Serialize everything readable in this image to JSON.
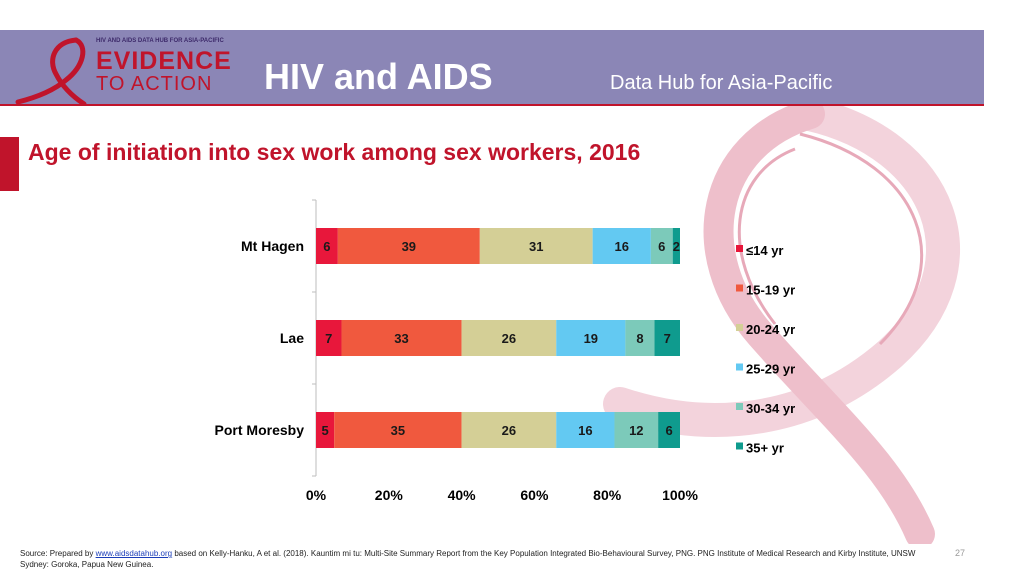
{
  "header": {
    "logo_small": "HIV AND AIDS DATA HUB FOR ASIA-PACIFIC",
    "logo_line1": "EVIDENCE",
    "logo_line2": "TO ACTION",
    "title": "HIV and AIDS",
    "subtitle": "Data Hub for Asia-Pacific"
  },
  "colors": {
    "header_bg": "#8b86b6",
    "accent_red": "#c0142b",
    "series": [
      "#e8173b",
      "#f0593e",
      "#d4cf96",
      "#63c9f2",
      "#7ccaba",
      "#0f9b8e"
    ]
  },
  "chart_data": {
    "type": "bar",
    "orientation": "horizontal",
    "stacked": true,
    "title": "Age of initiation into sex work among sex workers, 2016",
    "categories": [
      "Mt Hagen",
      "Lae",
      "Port Moresby"
    ],
    "series": [
      {
        "name": "≤14 yr",
        "values": [
          6,
          7,
          5
        ]
      },
      {
        "name": "15-19 yr",
        "values": [
          39,
          33,
          35
        ]
      },
      {
        "name": "20-24 yr",
        "values": [
          31,
          26,
          26
        ]
      },
      {
        "name": "25-29 yr",
        "values": [
          16,
          19,
          16
        ]
      },
      {
        "name": "30-34 yr",
        "values": [
          6,
          8,
          12
        ]
      },
      {
        "name": "35+ yr",
        "values": [
          2,
          7,
          6
        ]
      }
    ],
    "xlim": [
      0,
      100
    ],
    "xticks": [
      "0%",
      "20%",
      "40%",
      "60%",
      "80%",
      "100%"
    ],
    "legend_position": "right",
    "data_labels": true,
    "grid": false
  },
  "footer": {
    "source_prefix": "Source: Prepared by ",
    "source_link": "www.aidsdatahub.org",
    "source_rest": " based on Kelly-Hanku, A et al. (2018). Kauntim mi tu: Multi-Site Summary Report from the Key Population Integrated Bio-Behavioural Survey, PNG. PNG Institute of Medical Research and Kirby Institute, UNSW Sydney: Goroka, Papua New Guinea.",
    "page_number": "27"
  }
}
